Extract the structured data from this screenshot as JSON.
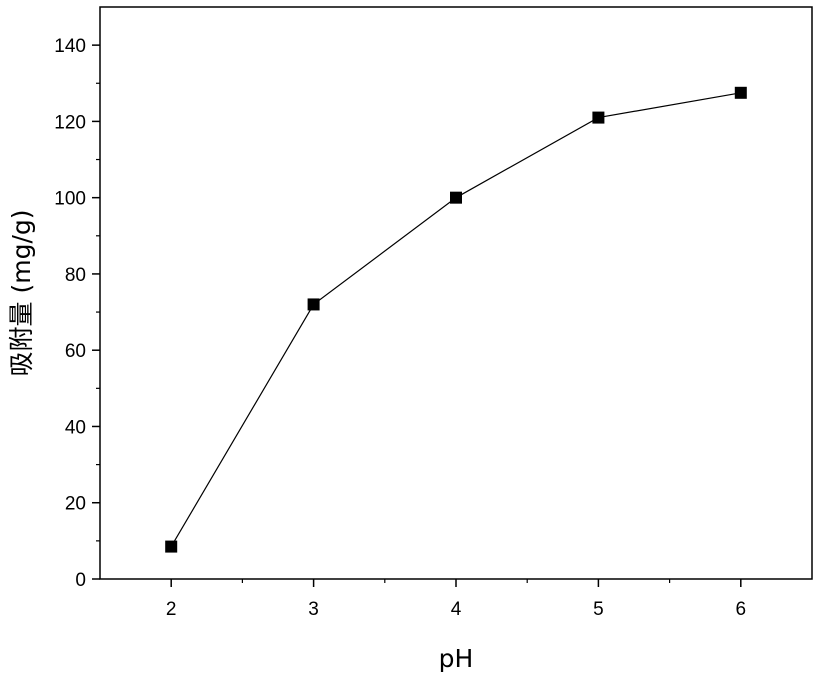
{
  "chart_data": {
    "type": "line",
    "xlabel": "pH",
    "ylabel": "吸附量 (mg/g)",
    "x": [
      2,
      3,
      4,
      5,
      6
    ],
    "series": [
      {
        "values": [
          8.5,
          72,
          100,
          121,
          127.5
        ]
      }
    ],
    "xlim": [
      1.5,
      6.5
    ],
    "ylim": [
      0,
      150
    ],
    "xticks": [
      "2",
      "3",
      "4",
      "5",
      "6"
    ],
    "yticks": [
      "0",
      "20",
      "40",
      "60",
      "80",
      "100",
      "120",
      "140"
    ],
    "grid": false,
    "marker": "square",
    "colors": {
      "line": "#000000",
      "marker": "#000000"
    }
  }
}
